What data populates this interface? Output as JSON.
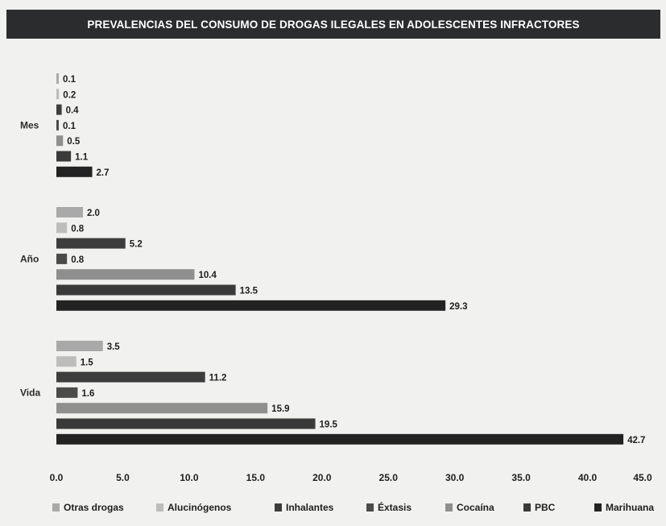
{
  "chart_data": {
    "type": "bar",
    "orientation": "horizontal",
    "title": "PREVALENCIAS DEL CONSUMO DE DROGAS ILEGALES EN ADOLESCENTES INFRACTORES",
    "categories": [
      "Mes",
      "Año",
      "Vida"
    ],
    "series": [
      {
        "name": "Otras drogas",
        "color": "#a9a9a9",
        "values": [
          0.1,
          2.0,
          3.5
        ]
      },
      {
        "name": "Alucinógenos",
        "color": "#bdbdbd",
        "values": [
          0.2,
          0.8,
          1.5
        ]
      },
      {
        "name": "Inhalantes",
        "color": "#3d3d3d",
        "values": [
          0.4,
          5.2,
          11.2
        ]
      },
      {
        "name": "Éxtasis",
        "color": "#4b4b4b",
        "values": [
          0.1,
          0.8,
          1.6
        ]
      },
      {
        "name": "Cocaína",
        "color": "#8f8f8f",
        "values": [
          0.5,
          10.4,
          15.9
        ]
      },
      {
        "name": "PBC",
        "color": "#3a3a3a",
        "values": [
          1.1,
          13.5,
          19.5
        ]
      },
      {
        "name": "Marihuana",
        "color": "#232323",
        "values": [
          2.7,
          29.3,
          42.7
        ]
      }
    ],
    "xlim": [
      0,
      45
    ],
    "xticks": [
      "0.0",
      "5.0",
      "10.0",
      "15.0",
      "20.0",
      "25.0",
      "30.0",
      "35.0",
      "40.0",
      "45.0"
    ],
    "legend_position": "bottom",
    "grid": false
  }
}
